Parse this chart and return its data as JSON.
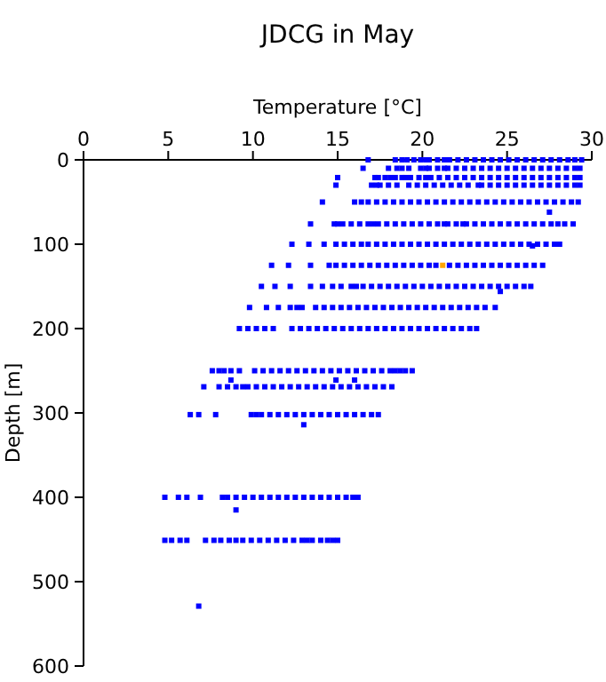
{
  "chart_data": {
    "type": "scatter",
    "title": "JDCG in May",
    "xlabel": "Temperature [°C]",
    "ylabel": "Depth [m]",
    "xlim": [
      0,
      30
    ],
    "xticks": [
      0,
      5,
      10,
      15,
      20,
      25,
      30
    ],
    "ylim": [
      600,
      0
    ],
    "yticks": [
      0,
      100,
      200,
      300,
      400,
      500,
      600
    ],
    "marker": "square",
    "series": [
      {
        "color": "#0000ff",
        "x": [
          16.8,
          18.4,
          18.8,
          19.1,
          19.5,
          19.9,
          20.2,
          20.4,
          20.9,
          21.3,
          21.6,
          22.1,
          22.6,
          23.1,
          23.6,
          24.1,
          24.6,
          25.1,
          25.6,
          26.1,
          26.6,
          27.1,
          27.6,
          28.1,
          28.6,
          29.0,
          29.4
        ],
        "values": [
          0,
          0,
          0,
          0,
          0,
          0,
          0,
          0,
          0,
          0,
          0,
          0,
          0,
          0,
          0,
          0,
          0,
          0,
          0,
          0,
          0,
          0,
          0,
          0,
          0,
          0,
          0
        ]
      },
      {
        "color": "#0000ff",
        "x": [
          16.5,
          18.0,
          18.5,
          18.8,
          19.2,
          19.9,
          20.2,
          20.4,
          20.9,
          21.3,
          21.5,
          22.0,
          22.5,
          23.0,
          23.5,
          24.0,
          24.5,
          25.0,
          25.5,
          26.0,
          26.5,
          27.0,
          27.5,
          28.0,
          28.5,
          29.0,
          29.3
        ],
        "values": [
          10,
          10,
          10,
          10,
          10,
          10,
          10,
          10,
          10,
          10,
          10,
          10,
          10,
          10,
          10,
          10,
          10,
          10,
          10,
          10,
          10,
          10,
          10,
          10,
          10,
          10,
          10
        ]
      },
      {
        "color": "#0000ff",
        "x": [
          15.0,
          17.2,
          17.4,
          17.8,
          18.1,
          18.4,
          18.8,
          19.0,
          19.3,
          19.8,
          20.2,
          20.5,
          21.0,
          21.5,
          22.0,
          22.5,
          23.0,
          23.5,
          24.0,
          24.5,
          25.0,
          25.5,
          26.0,
          26.5,
          27.0,
          27.5,
          28.0,
          28.5,
          29.0,
          29.3
        ],
        "values": [
          21,
          21,
          21,
          21,
          21,
          21,
          21,
          21,
          21,
          21,
          21,
          21,
          21,
          21,
          21,
          21,
          21,
          21,
          21,
          21,
          21,
          21,
          21,
          21,
          21,
          21,
          21,
          21,
          21,
          21
        ]
      },
      {
        "color": "#0000ff",
        "x": [
          14.9,
          17.0,
          17.3,
          17.5,
          18.0,
          18.5,
          19.2,
          19.7,
          20.2,
          20.7,
          21.2,
          21.7,
          22.2,
          22.7,
          23.3,
          23.5,
          24.0,
          24.5,
          25.0,
          25.5,
          26.0,
          26.5,
          27.0,
          27.5,
          28.0,
          28.5,
          29.0,
          29.3
        ],
        "values": [
          30,
          30,
          30,
          30,
          30,
          30,
          30,
          30,
          30,
          30,
          30,
          30,
          30,
          30,
          30,
          30,
          30,
          30,
          30,
          30,
          30,
          30,
          30,
          30,
          30,
          30,
          30,
          30
        ]
      },
      {
        "color": "#0000ff",
        "x": [
          14.1,
          16.0,
          16.4,
          16.8,
          17.3,
          17.8,
          18.3,
          18.8,
          19.3,
          19.8,
          20.3,
          20.8,
          21.3,
          21.8,
          22.3,
          22.8,
          23.3,
          23.8,
          24.3,
          24.8,
          25.3,
          25.8,
          26.3,
          26.8,
          27.3,
          27.8,
          28.3,
          28.8,
          29.2
        ],
        "values": [
          50,
          50,
          50,
          50,
          50,
          50,
          50,
          50,
          50,
          50,
          50,
          50,
          50,
          50,
          50,
          50,
          50,
          50,
          50,
          50,
          50,
          50,
          50,
          50,
          50,
          50,
          50,
          50,
          50
        ]
      },
      {
        "color": "#0000ff",
        "x": [
          13.4,
          14.8,
          15.0,
          15.3,
          15.8,
          16.3,
          16.8,
          17.1,
          17.4,
          17.9,
          18.4,
          18.9,
          19.4,
          19.9,
          20.4,
          20.9,
          21.3,
          21.5,
          22.0,
          22.4,
          22.6,
          23.1,
          23.6,
          24.1,
          24.6,
          25.1,
          25.6,
          26.1,
          26.6,
          27.1,
          27.6,
          28.0,
          28.4,
          28.9
        ],
        "values": [
          76,
          76,
          76,
          76,
          76,
          76,
          76,
          76,
          76,
          76,
          76,
          76,
          76,
          76,
          76,
          76,
          76,
          76,
          76,
          76,
          76,
          76,
          76,
          76,
          76,
          76,
          76,
          76,
          76,
          76,
          76,
          76,
          76,
          76
        ]
      },
      {
        "color": "#0000ff",
        "x": [
          12.3,
          13.3,
          14.2,
          14.9,
          15.4,
          15.9,
          16.4,
          16.8,
          17.3,
          17.8,
          18.3,
          18.8,
          19.3,
          19.8,
          20.3,
          20.8,
          21.3,
          21.8,
          22.3,
          22.8,
          23.3,
          23.8,
          24.3,
          24.8,
          25.3,
          25.8,
          26.3,
          26.8,
          27.3,
          27.8,
          28.1
        ],
        "values": [
          100,
          100,
          100,
          100,
          100,
          100,
          100,
          100,
          100,
          100,
          100,
          100,
          100,
          100,
          100,
          100,
          100,
          100,
          100,
          100,
          100,
          100,
          100,
          100,
          100,
          100,
          100,
          100,
          100,
          100,
          100
        ]
      },
      {
        "color": "#0000ff",
        "x": [
          11.1,
          12.1,
          13.4,
          14.5,
          14.9,
          15.4,
          15.9,
          16.4,
          16.9,
          17.4,
          17.9,
          18.4,
          18.9,
          19.4,
          19.9,
          20.4,
          20.8,
          21.6,
          22.1,
          22.6,
          23.1,
          23.6,
          24.1,
          24.6,
          25.1,
          25.6,
          26.1,
          26.6,
          27.1
        ],
        "values": [
          125,
          125,
          125,
          125,
          125,
          125,
          125,
          125,
          125,
          125,
          125,
          125,
          125,
          125,
          125,
          125,
          125,
          125,
          125,
          125,
          125,
          125,
          125,
          125,
          125,
          125,
          125,
          125,
          125
        ]
      },
      {
        "color": "#0000ff",
        "x": [
          10.5,
          11.3,
          12.2,
          13.4,
          14.1,
          14.7,
          15.2,
          15.8,
          16.1,
          16.5,
          17.0,
          17.5,
          18.0,
          18.5,
          19.0,
          19.5,
          20.0,
          20.5,
          21.0,
          21.5,
          22.0,
          22.5,
          23.0,
          23.5,
          24.0,
          24.5,
          25.0,
          25.5,
          26.0,
          26.4
        ],
        "values": [
          150,
          150,
          150,
          150,
          150,
          150,
          150,
          150,
          150,
          150,
          150,
          150,
          150,
          150,
          150,
          150,
          150,
          150,
          150,
          150,
          150,
          150,
          150,
          150,
          150,
          150,
          150,
          150,
          150,
          150
        ]
      },
      {
        "color": "#0000ff",
        "x": [
          9.8,
          10.8,
          11.5,
          12.2,
          12.6,
          12.9,
          13.7,
          14.2,
          14.7,
          15.2,
          15.7,
          16.2,
          16.7,
          17.2,
          17.7,
          18.2,
          18.7,
          19.2,
          19.7,
          20.2,
          20.7,
          21.2,
          21.7,
          22.2,
          22.7,
          23.2,
          23.7,
          24.3
        ],
        "values": [
          175,
          175,
          175,
          175,
          175,
          175,
          175,
          175,
          175,
          175,
          175,
          175,
          175,
          175,
          175,
          175,
          175,
          175,
          175,
          175,
          175,
          175,
          175,
          175,
          175,
          175,
          175,
          175
        ]
      },
      {
        "color": "#0000ff",
        "x": [
          9.2,
          9.7,
          10.2,
          10.7,
          11.2,
          12.3,
          12.8,
          13.3,
          13.8,
          14.3,
          14.8,
          15.3,
          15.8,
          16.3,
          16.8,
          17.3,
          17.8,
          18.3,
          18.8,
          19.3,
          19.8,
          20.3,
          20.8,
          21.3,
          21.8,
          22.3,
          22.8,
          23.2
        ],
        "values": [
          200,
          200,
          200,
          200,
          200,
          200,
          200,
          200,
          200,
          200,
          200,
          200,
          200,
          200,
          200,
          200,
          200,
          200,
          200,
          200,
          200,
          200,
          200,
          200,
          200,
          200,
          200,
          200
        ]
      },
      {
        "color": "#0000ff",
        "x": [
          7.6,
          8.0,
          8.3,
          8.7,
          9.2,
          10.1,
          10.6,
          11.1,
          11.6,
          12.1,
          12.6,
          13.1,
          13.6,
          14.1,
          14.6,
          15.1,
          15.6,
          16.1,
          16.6,
          17.1,
          17.6,
          18.1,
          18.4,
          18.7,
          19.0,
          19.4
        ],
        "values": [
          250,
          250,
          250,
          250,
          250,
          250,
          250,
          250,
          250,
          250,
          250,
          250,
          250,
          250,
          250,
          250,
          250,
          250,
          250,
          250,
          250,
          250,
          250,
          250,
          250,
          250
        ]
      },
      {
        "color": "#0000ff",
        "x": [
          7.1,
          8.0,
          8.5,
          9.0,
          9.4,
          9.7,
          10.2,
          10.7,
          11.2,
          11.7,
          12.2,
          12.7,
          13.2,
          13.7,
          14.2,
          14.7,
          15.2,
          15.7,
          16.2,
          16.7,
          17.2,
          17.7,
          18.2
        ],
        "values": [
          269,
          269,
          269,
          269,
          269,
          269,
          269,
          269,
          269,
          269,
          269,
          269,
          269,
          269,
          269,
          269,
          269,
          269,
          269,
          269,
          269,
          269,
          269
        ]
      },
      {
        "color": "#0000ff",
        "x": [
          6.3,
          6.8,
          7.8,
          9.9,
          10.2,
          10.5,
          11.0,
          11.5,
          12.0,
          12.5,
          13.0,
          13.5,
          14.0,
          14.5,
          15.0,
          15.5,
          16.0,
          16.5,
          17.0,
          17.4
        ],
        "values": [
          302,
          302,
          302,
          302,
          302,
          302,
          302,
          302,
          302,
          302,
          302,
          302,
          302,
          302,
          302,
          302,
          302,
          302,
          302,
          302
        ]
      },
      {
        "color": "#0000ff",
        "x": [
          4.8,
          5.6,
          6.1,
          6.9,
          8.2,
          8.5,
          9.0,
          9.5,
          10.0,
          10.5,
          11.0,
          11.5,
          12.0,
          12.5,
          13.0,
          13.5,
          14.0,
          14.5,
          15.0,
          15.5,
          15.9,
          16.2
        ],
        "values": [
          400,
          400,
          400,
          400,
          400,
          400,
          400,
          400,
          400,
          400,
          400,
          400,
          400,
          400,
          400,
          400,
          400,
          400,
          400,
          400,
          400,
          400
        ]
      },
      {
        "color": "#0000ff",
        "x": [
          4.8,
          5.2,
          5.7,
          6.1,
          7.2,
          7.7,
          8.1,
          8.6,
          9.0,
          9.4,
          9.9,
          10.4,
          10.9,
          11.4,
          11.9,
          12.4,
          12.9,
          13.2,
          13.5,
          14.0,
          14.4,
          14.7,
          15.0
        ],
        "values": [
          451,
          451,
          451,
          451,
          451,
          451,
          451,
          451,
          451,
          451,
          451,
          451,
          451,
          451,
          451,
          451,
          451,
          451,
          451,
          451,
          451,
          451,
          451
        ]
      },
      {
        "color": "#0000ff",
        "x": [
          27.5,
          26.5,
          24.6,
          8.7,
          14.9,
          16.0,
          13.0,
          9.0,
          6.8
        ],
        "values": [
          62,
          102,
          156,
          261,
          261,
          261,
          314,
          415,
          529
        ]
      },
      {
        "color": "#ffa500",
        "x": [
          21.2
        ],
        "values": [
          125
        ]
      }
    ]
  }
}
